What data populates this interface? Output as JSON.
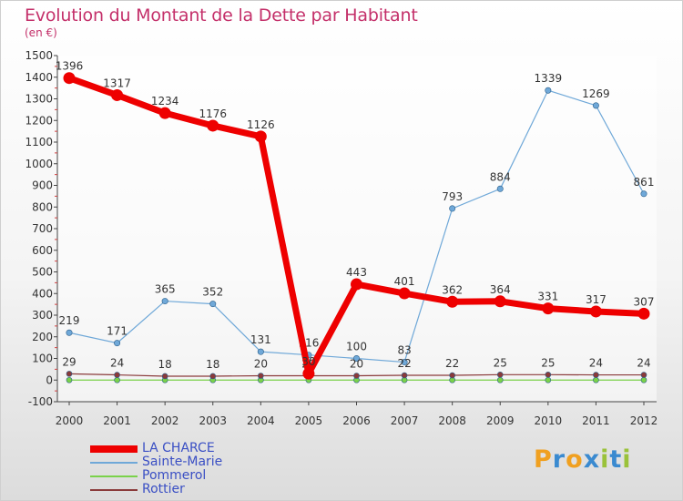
{
  "header": {
    "title": "Evolution du Montant de la Dette par Habitant",
    "unit": "(en €)"
  },
  "brand": {
    "letters": [
      "P",
      "r",
      "o",
      "x",
      "i",
      "t",
      "i"
    ],
    "colors": [
      "#f0a020",
      "#3a8ad0",
      "#f0a020",
      "#3a8ad0",
      "#9ac23a",
      "#3a8ad0",
      "#9ac23a"
    ]
  },
  "chart_data": {
    "type": "line",
    "title": "Evolution du Montant de la Dette par Habitant",
    "ylabel": "(en €)",
    "xlabel": "",
    "ylim": [
      -100,
      1500
    ],
    "yticks": [
      -100,
      0,
      100,
      200,
      300,
      400,
      500,
      600,
      700,
      800,
      900,
      1000,
      1100,
      1200,
      1300,
      1400,
      1500
    ],
    "categories": [
      "2000",
      "2001",
      "2002",
      "2003",
      "2004",
      "2005",
      "2006",
      "2007",
      "2008",
      "2009",
      "2010",
      "2011",
      "2012"
    ],
    "grid": false,
    "legend_position": "bottom-left",
    "series": [
      {
        "name": "Sainte-Marie",
        "color": "#6fa8d8",
        "values": [
          219,
          171,
          365,
          352,
          131,
          116,
          100,
          83,
          793,
          884,
          1339,
          1269,
          861
        ]
      },
      {
        "name": "Pommerol",
        "color": "#7ad24a",
        "values": [
          0,
          0,
          0,
          0,
          0,
          0,
          0,
          0,
          0,
          0,
          0,
          0,
          0
        ]
      },
      {
        "name": "Rottier",
        "color": "#8a3a3a",
        "values": [
          29,
          24,
          18,
          18,
          20,
          20,
          20,
          22,
          22,
          25,
          25,
          24,
          24
        ]
      },
      {
        "name": "LA CHARCE",
        "color": "#ee0000",
        "values": [
          1396,
          1317,
          1234,
          1176,
          1126,
          30,
          443,
          401,
          362,
          364,
          331,
          317,
          307
        ]
      }
    ],
    "value_labels_shown": {
      "Sainte-Marie": [
        219,
        171,
        365,
        352,
        131,
        116,
        100,
        83,
        793,
        884,
        1339,
        1269,
        861
      ],
      "Rottier": [
        29,
        24,
        18,
        18,
        20,
        20,
        20,
        22,
        22,
        25,
        25,
        24,
        24
      ],
      "LA CHARCE": [
        1396,
        1317,
        1234,
        1176,
        1126,
        30,
        443,
        401,
        362,
        364,
        331,
        317,
        307
      ]
    }
  }
}
